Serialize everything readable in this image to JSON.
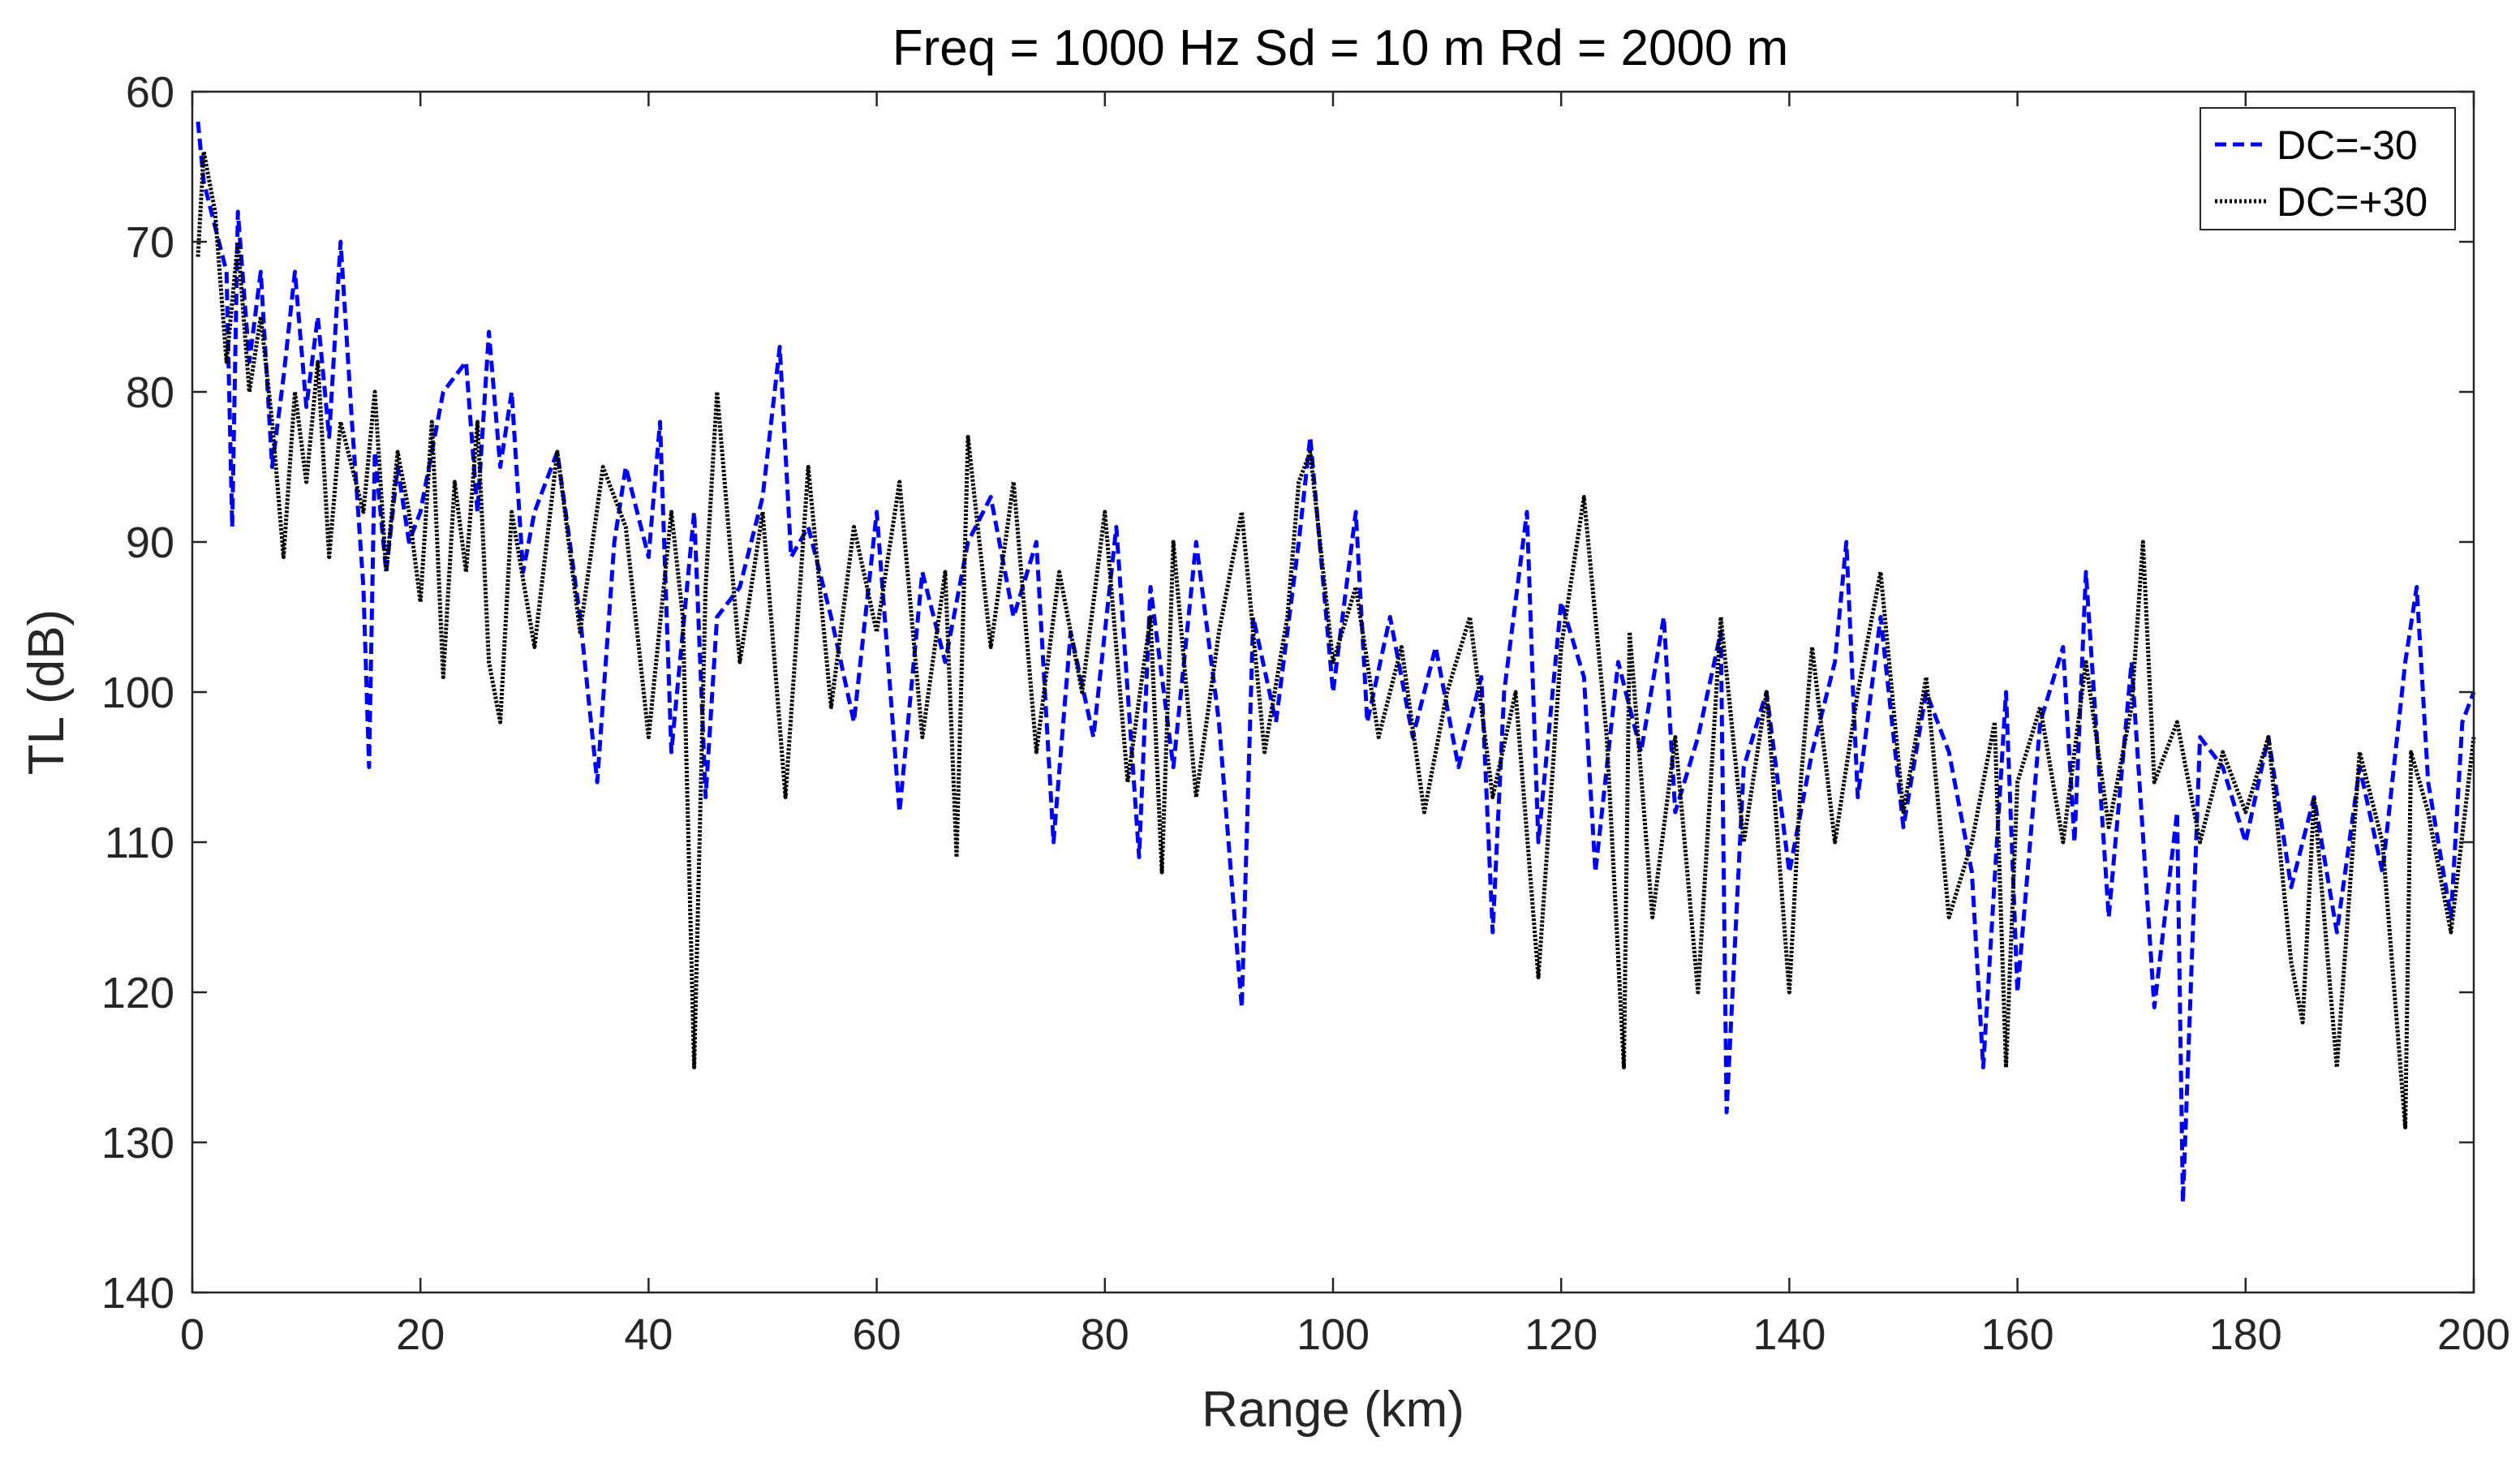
{
  "chart_data": {
    "type": "line",
    "title": "Freq = 1000 Hz    Sd = 10 m   Rd = 2000 m",
    "xlabel": "Range (km)",
    "ylabel": "TL (dB)",
    "xlim": [
      0,
      200
    ],
    "ylim": [
      60,
      140
    ],
    "y_reversed": true,
    "grid": false,
    "legend_position": "top-right",
    "xticks": [
      0,
      20,
      40,
      60,
      80,
      100,
      120,
      140,
      160,
      180,
      200
    ],
    "xtick_labels": [
      "0",
      "20",
      "40",
      "60",
      "80",
      "100",
      "120",
      "140",
      "160",
      "180",
      "200"
    ],
    "yticks": [
      60,
      70,
      80,
      90,
      100,
      110,
      120,
      130,
      140
    ],
    "ytick_labels": [
      "60",
      "70",
      "80",
      "90",
      "100",
      "110",
      "120",
      "130",
      "140"
    ],
    "series": [
      {
        "name": "DC=-30",
        "color": "#0000ff",
        "style": "dashed",
        "x": [
          0.5,
          1,
          2,
          3,
          3.5,
          4,
          5,
          6,
          7,
          8,
          9,
          10,
          11,
          12,
          13,
          14,
          15,
          15.5,
          16,
          17,
          18,
          19,
          20,
          22,
          24,
          25,
          26,
          27,
          28,
          29,
          30,
          32,
          34,
          35.5,
          37,
          38,
          40,
          41,
          42,
          44,
          45,
          46,
          48,
          50,
          51.5,
          52.5,
          54,
          56,
          58,
          60,
          62,
          64,
          66,
          68,
          70,
          72,
          74,
          75.5,
          77,
          79,
          81,
          83,
          84,
          86,
          88,
          90,
          92,
          93,
          95,
          97,
          98,
          100,
          102,
          103,
          105,
          107,
          109,
          111,
          113,
          114,
          115,
          117,
          118,
          120,
          122,
          123,
          125,
          127,
          129,
          130,
          132,
          134,
          134.5,
          136,
          138,
          140,
          142,
          144,
          145,
          146,
          148,
          150,
          152,
          154,
          156,
          157,
          159,
          160,
          162,
          164,
          165,
          166,
          168,
          170,
          172,
          174,
          174.5,
          176,
          178,
          180,
          182,
          184,
          186,
          188,
          190,
          192,
          194,
          195,
          196,
          198,
          199,
          200
        ],
        "y": [
          62,
          66,
          69,
          72,
          89,
          68,
          78,
          72,
          85,
          79,
          72,
          81,
          75,
          83,
          70,
          82,
          93,
          105,
          84,
          92,
          85,
          90,
          88,
          80,
          78,
          88,
          76,
          85,
          80,
          92,
          88,
          84,
          95,
          106,
          90,
          85,
          91,
          82,
          104,
          88,
          107,
          95,
          93,
          87,
          77,
          91,
          89,
          95,
          102,
          88,
          108,
          92,
          98,
          90,
          87,
          95,
          90,
          110,
          96,
          103,
          89,
          111,
          93,
          105,
          90,
          102,
          121,
          95,
          102,
          90,
          83,
          100,
          88,
          102,
          95,
          103,
          97,
          105,
          99,
          116,
          100,
          88,
          110,
          94,
          99,
          112,
          98,
          104,
          95,
          108,
          103,
          96,
          128,
          105,
          100,
          112,
          104,
          98,
          90,
          107,
          95,
          109,
          100,
          104,
          112,
          125,
          100,
          120,
          102,
          97,
          110,
          92,
          115,
          98,
          121,
          108,
          134,
          103,
          105,
          110,
          103,
          113,
          107,
          116,
          105,
          112,
          98,
          93,
          106,
          115,
          102,
          100
        ]
      },
      {
        "name": "DC=+30",
        "color": "#000000",
        "style": "dotted",
        "x": [
          0.5,
          1,
          2,
          3,
          4,
          5,
          6,
          7,
          8,
          9,
          10,
          11,
          12,
          13,
          14,
          15,
          16,
          17,
          18,
          19,
          20,
          21,
          22,
          23,
          24,
          25,
          26,
          27,
          28,
          30,
          32,
          34,
          36,
          38,
          40,
          42,
          43,
          44,
          45,
          46,
          48,
          50,
          52,
          54,
          56,
          58,
          60,
          62,
          64,
          66,
          67,
          68,
          70,
          72,
          74,
          76,
          78,
          80,
          82,
          84,
          85,
          86,
          88,
          90,
          92,
          94,
          96,
          97,
          98,
          100,
          102,
          104,
          106,
          108,
          110,
          112,
          114,
          116,
          118,
          120,
          122,
          124,
          125.5,
          126,
          128,
          130,
          132,
          134,
          136,
          138,
          140,
          141,
          142,
          144,
          146,
          148,
          150,
          152,
          154,
          156,
          158,
          159,
          160,
          162,
          164,
          166,
          168,
          170,
          171,
          172,
          174,
          176,
          178,
          180,
          182,
          184,
          185,
          186,
          188,
          190,
          192,
          194,
          194.5,
          196,
          198,
          200
        ],
        "y": [
          71,
          64,
          68,
          78,
          70,
          80,
          75,
          82,
          91,
          80,
          86,
          78,
          91,
          82,
          85,
          88,
          80,
          92,
          84,
          88,
          94,
          82,
          99,
          86,
          92,
          82,
          98,
          102,
          88,
          97,
          84,
          96,
          85,
          89,
          103,
          88,
          95,
          125,
          93,
          80,
          98,
          88,
          107,
          85,
          101,
          89,
          96,
          86,
          103,
          92,
          111,
          83,
          97,
          86,
          104,
          92,
          100,
          88,
          106,
          95,
          112,
          90,
          107,
          96,
          88,
          104,
          95,
          86,
          84,
          98,
          93,
          103,
          97,
          108,
          100,
          95,
          107,
          100,
          119,
          97,
          87,
          103,
          125,
          96,
          115,
          103,
          120,
          95,
          110,
          100,
          120,
          106,
          97,
          110,
          100,
          92,
          108,
          99,
          115,
          110,
          102,
          125,
          106,
          101,
          110,
          98,
          109,
          101,
          90,
          106,
          102,
          110,
          104,
          108,
          103,
          118,
          122,
          107,
          125,
          104,
          110,
          129,
          104,
          108,
          116,
          103
        ]
      }
    ]
  }
}
